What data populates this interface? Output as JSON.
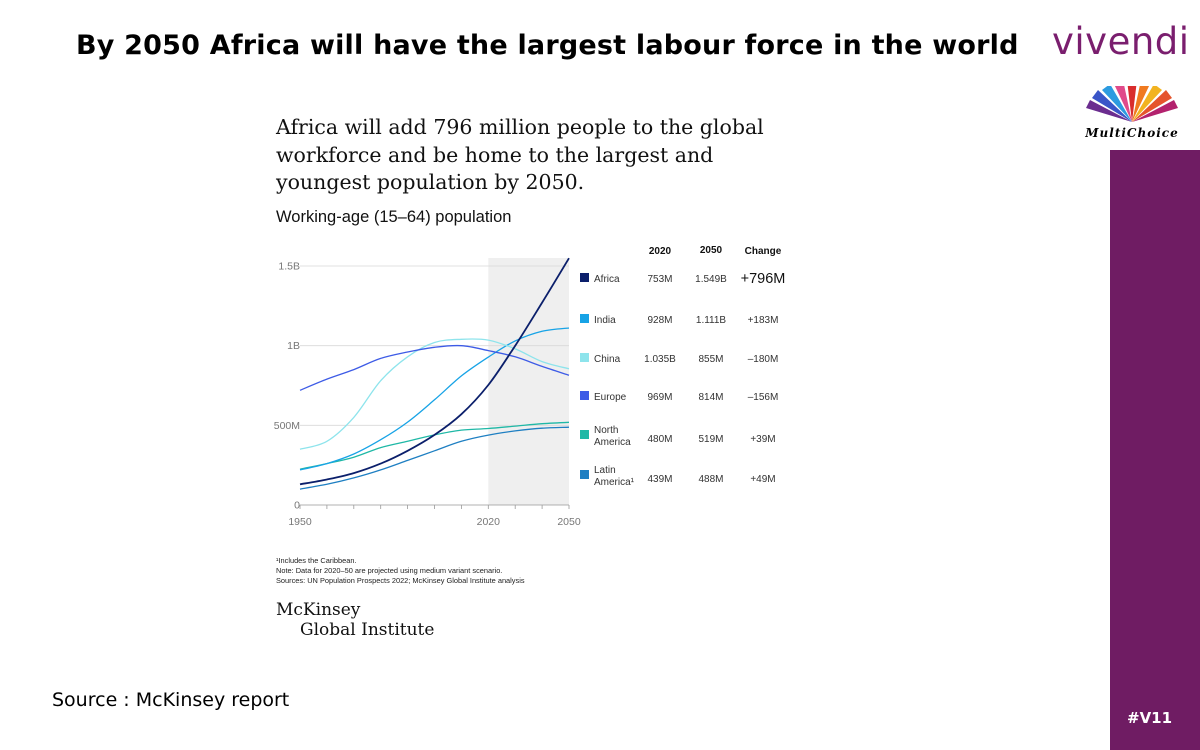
{
  "slide": {
    "title": "By 2050 Africa will have the largest labour force in the world",
    "brand": "vivendi",
    "multichoice": "MultiChoice",
    "hashtag": "#V11",
    "source": "Source : McKinsey report"
  },
  "figure": {
    "headline_lines": [
      "Africa will add 796 million people to the global",
      "workforce and be home to the largest and",
      "youngest population by 2050."
    ],
    "footnote_lines": [
      "¹Includes the Caribbean.",
      "Note: Data for 2020–50 are projected using medium variant scenario.",
      "Sources: UN Population Prospects 2022; McKinsey Global Institute analysis"
    ],
    "publisher_lines": [
      "McKinsey",
      "Global Institute"
    ]
  },
  "chart_data": {
    "type": "line",
    "title": "Working-age (15–64) population",
    "xlim": [
      1950,
      2050
    ],
    "ylim": [
      0,
      1500
    ],
    "x_ticks": [
      "1950",
      "2020",
      "2050"
    ],
    "y_ticks": [
      {
        "value": 0,
        "label": "0"
      },
      {
        "value": 500,
        "label": "500M"
      },
      {
        "value": 1000,
        "label": "1B"
      },
      {
        "value": 1500,
        "label": "1.5B"
      }
    ],
    "projection_range": [
      2020,
      2050
    ],
    "x": [
      1950,
      1960,
      1970,
      1980,
      1990,
      2000,
      2010,
      2020,
      2030,
      2040,
      2050
    ],
    "series": [
      {
        "name": "Africa",
        "color": "#0b1f6b",
        "values": [
          130,
          160,
          200,
          260,
          340,
          440,
          570,
          753,
          1000,
          1270,
          1549
        ]
      },
      {
        "name": "India",
        "color": "#17a3e6",
        "values": [
          220,
          260,
          320,
          410,
          520,
          660,
          810,
          928,
          1030,
          1090,
          1111
        ]
      },
      {
        "name": "China",
        "color": "#8ee4ec",
        "values": [
          350,
          400,
          550,
          780,
          930,
          1020,
          1040,
          1035,
          980,
          900,
          855
        ]
      },
      {
        "name": "Europe",
        "color": "#3d5be6",
        "values": [
          720,
          790,
          850,
          920,
          960,
          990,
          1000,
          969,
          930,
          870,
          814
        ]
      },
      {
        "name": "North America",
        "color": "#1fb8a6",
        "values": [
          225,
          260,
          300,
          360,
          400,
          440,
          470,
          480,
          495,
          510,
          519
        ]
      },
      {
        "name": "Latin America¹",
        "color": "#1e7fc2",
        "values": [
          100,
          130,
          170,
          220,
          280,
          340,
          400,
          439,
          465,
          482,
          488
        ]
      }
    ],
    "table": {
      "headers": [
        "2020",
        "2050",
        "Change"
      ],
      "rows": [
        {
          "name": "Africa",
          "v2020": "753M",
          "v2050": "1.549B",
          "change": "+796M"
        },
        {
          "name": "India",
          "v2020": "928M",
          "v2050": "1.111B",
          "change": "+183M"
        },
        {
          "name": "China",
          "v2020": "1.035B",
          "v2050": "855M",
          "change": "–180M"
        },
        {
          "name": "Europe",
          "v2020": "969M",
          "v2050": "814M",
          "change": "–156M"
        },
        {
          "name": "North America",
          "name_lines": [
            "North",
            "America"
          ],
          "v2020": "480M",
          "v2050": "519M",
          "change": "+39M"
        },
        {
          "name": "Latin America¹",
          "name_lines": [
            "Latin",
            "America¹"
          ],
          "v2020": "439M",
          "v2050": "488M",
          "change": "+49M"
        }
      ]
    }
  }
}
